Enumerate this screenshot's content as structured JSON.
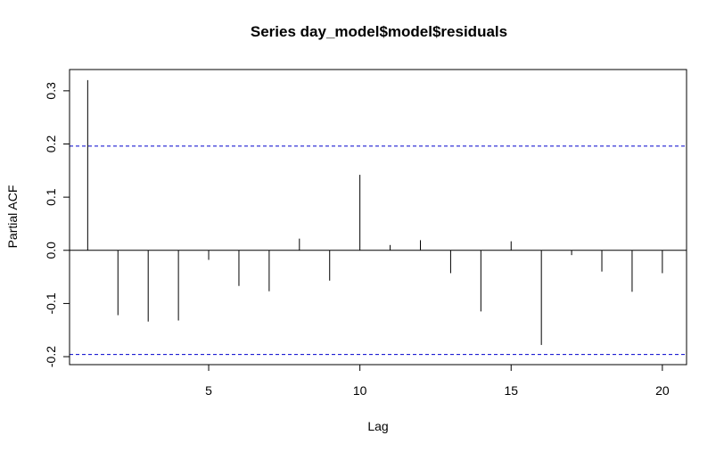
{
  "chart_data": {
    "type": "bar",
    "title": "Series  day_model$model$residuals",
    "xlabel": "Lag",
    "ylabel": "Partial ACF",
    "x": [
      1,
      2,
      3,
      4,
      5,
      6,
      7,
      8,
      9,
      10,
      11,
      12,
      13,
      14,
      15,
      16,
      17,
      18,
      19,
      20
    ],
    "values": [
      0.32,
      -0.122,
      -0.134,
      -0.132,
      -0.018,
      -0.067,
      -0.077,
      0.022,
      -0.057,
      0.142,
      0.01,
      0.019,
      -0.043,
      -0.115,
      0.017,
      -0.178,
      -0.009,
      -0.04,
      -0.078,
      -0.043
    ],
    "xlim": [
      0.4,
      20.8
    ],
    "ylim": [
      -0.215,
      0.34
    ],
    "xticks": [
      5,
      10,
      15,
      20
    ],
    "yticks": [
      -0.2,
      -0.1,
      0.0,
      0.1,
      0.2,
      0.3
    ],
    "ytick_labels": [
      "-0.2",
      "-0.1",
      "0.0",
      "0.1",
      "0.2",
      "0.3"
    ],
    "xtick_labels": [
      "5",
      "10",
      "15",
      "20"
    ],
    "confidence_bound": 0.196,
    "colors": {
      "bars": "#000000",
      "confidence_lines": "#0000cd",
      "axes": "#000000"
    },
    "grid": false
  }
}
